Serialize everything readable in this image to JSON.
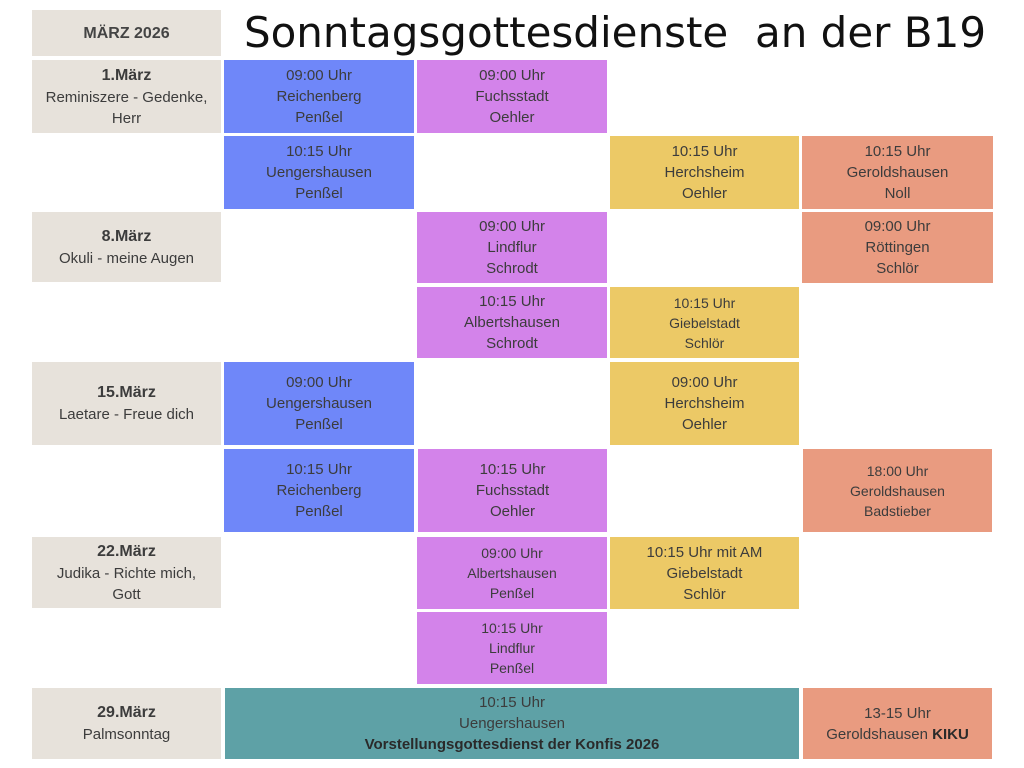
{
  "month_label": "MÄRZ 2026",
  "title": "Sonntagsgottesdienste  an der B19",
  "colors": {
    "date_bg": "#e7e2db",
    "reichenberg_uengershausen": "#6f87f9",
    "fuchsstadt_lindflur_albertshausen": "#d383ea",
    "herchsheim_giebelstadt": "#ecc966",
    "geroldshausen_roettingen": "#e99b80",
    "konfis": "#5ea1a6"
  },
  "dates": [
    {
      "date": "1.März",
      "desc": "Reminiszere - Gedenke, Herr"
    },
    {
      "date": "8.März",
      "desc": "Okuli - meine Augen"
    },
    {
      "date": "15.März",
      "desc": "Laetare - Freue dich"
    },
    {
      "date": "22.März",
      "desc": "Judika - Richte mich, Gott"
    },
    {
      "date": "29.März",
      "desc": "Palmsonntag"
    }
  ],
  "services": [
    {
      "time": "09:00 Uhr",
      "place": "Reichenberg",
      "pastor": "Penßel"
    },
    {
      "time": "09:00 Uhr",
      "place": "Fuchsstadt",
      "pastor": "Oehler"
    },
    {
      "time": "10:15 Uhr",
      "place": "Uengershausen",
      "pastor": "Penßel"
    },
    {
      "time": "10:15 Uhr",
      "place": "Herchsheim",
      "pastor": "Oehler"
    },
    {
      "time": "10:15 Uhr",
      "place": "Geroldshausen",
      "pastor": "Noll"
    },
    {
      "time": "09:00 Uhr",
      "place": "Lindflur",
      "pastor": "Schrodt"
    },
    {
      "time": "09:00 Uhr",
      "place": "Röttingen",
      "pastor": "Schlör"
    },
    {
      "time": "10:15 Uhr",
      "place": "Albertshausen",
      "pastor": "Schrodt"
    },
    {
      "time": "10:15 Uhr",
      "place": "Giebelstadt",
      "pastor": "Schlör"
    },
    {
      "time": "09:00 Uhr",
      "place": "Uengershausen",
      "pastor": "Penßel"
    },
    {
      "time": "09:00 Uhr",
      "place": "Herchsheim",
      "pastor": "Oehler"
    },
    {
      "time": "10:15 Uhr",
      "place": "Reichenberg",
      "pastor": "Penßel"
    },
    {
      "time": "10:15 Uhr",
      "place": "Fuchsstadt",
      "pastor": "Oehler"
    },
    {
      "time": "18:00 Uhr",
      "place": "Geroldshausen",
      "pastor": "Badstieber"
    },
    {
      "time": "09:00 Uhr",
      "place": "Albertshausen",
      "pastor": "Penßel"
    },
    {
      "time": "10:15 Uhr mit AM",
      "place": "Giebelstadt",
      "pastor": "Schlör"
    },
    {
      "time": "10:15 Uhr",
      "place": "Lindflur",
      "pastor": "Penßel"
    }
  ],
  "konfis": {
    "time": "10:15 Uhr",
    "place": "Uengershausen",
    "event": "Vorstellungsgottesdienst der Konfis 2026"
  },
  "kiku": {
    "time": "13-15 Uhr",
    "place": "Geroldshausen",
    "event": "KIKU"
  }
}
